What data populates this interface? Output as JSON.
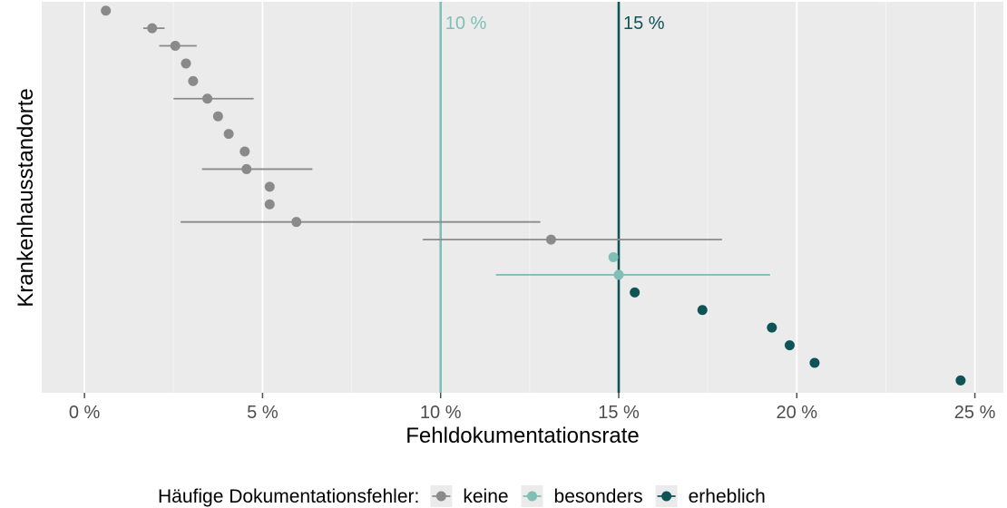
{
  "chart_data": {
    "type": "scatter",
    "title": "",
    "xlabel": "Fehldokumentationsrate",
    "ylabel": "Krankenhausstandorte",
    "xlim": [
      -1.2,
      25.8
    ],
    "ylim": [
      0.3,
      22.5
    ],
    "x_ticks": [
      0,
      5,
      10,
      15,
      20,
      25
    ],
    "x_tick_labels": [
      "0 %",
      "5 %",
      "10 %",
      "15 %",
      "20 %",
      "25 %"
    ],
    "grid": true,
    "legend_position": "bottom",
    "legend_title": "Häufige Dokumentationsfehler:",
    "reference_lines": [
      {
        "x": 10,
        "label": "10 %",
        "color": "#7fbfb6"
      },
      {
        "x": 15,
        "label": "15 %",
        "color": "#0e5457"
      }
    ],
    "series": [
      {
        "name": "keine",
        "color": "#8a8a8a",
        "points": [
          {
            "y": 22,
            "x": 0.6
          },
          {
            "y": 21,
            "x": 1.9,
            "lo": 1.65,
            "hi": 2.25
          },
          {
            "y": 20,
            "x": 2.55,
            "lo": 2.1,
            "hi": 3.15
          },
          {
            "y": 19,
            "x": 2.85
          },
          {
            "y": 18,
            "x": 3.05
          },
          {
            "y": 17,
            "x": 3.45,
            "lo": 2.5,
            "hi": 4.75
          },
          {
            "y": 16,
            "x": 3.75
          },
          {
            "y": 15,
            "x": 4.05
          },
          {
            "y": 14,
            "x": 4.5
          },
          {
            "y": 13,
            "x": 4.55,
            "lo": 3.3,
            "hi": 6.4
          },
          {
            "y": 12,
            "x": 5.2
          },
          {
            "y": 11,
            "x": 5.2
          },
          {
            "y": 10,
            "x": 5.95,
            "lo": 2.7,
            "hi": 12.8
          },
          {
            "y": 9,
            "x": 13.1,
            "lo": 9.5,
            "hi": 17.9
          }
        ]
      },
      {
        "name": "besonders",
        "color": "#7fbfb6",
        "points": [
          {
            "y": 8,
            "x": 14.85
          },
          {
            "y": 7,
            "x": 15.0,
            "lo": 11.55,
            "hi": 19.25
          }
        ]
      },
      {
        "name": "erheblich",
        "color": "#0e5457",
        "points": [
          {
            "y": 6,
            "x": 15.45
          },
          {
            "y": 5,
            "x": 17.35
          },
          {
            "y": 4,
            "x": 19.3
          },
          {
            "y": 3,
            "x": 19.8
          },
          {
            "y": 2,
            "x": 20.5
          },
          {
            "y": 1,
            "x": 24.6
          }
        ]
      }
    ]
  }
}
